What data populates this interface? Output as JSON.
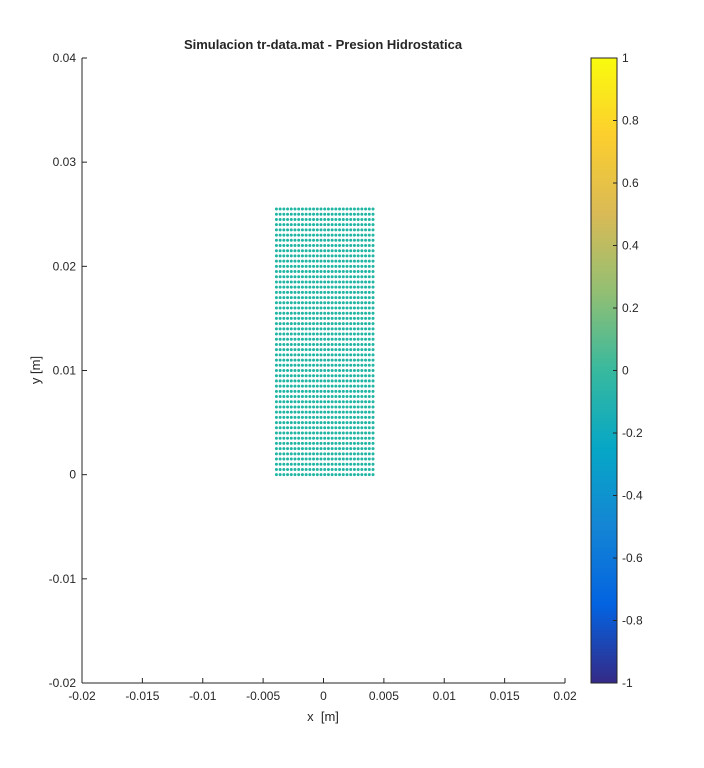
{
  "chart_data": {
    "type": "scatter",
    "title": "Simulacion tr-data.mat - Presion Hidrostatica",
    "xlabel": "x  [m]",
    "ylabel": "y [m]",
    "xlim": [
      -0.02,
      0.02
    ],
    "ylim": [
      -0.02,
      0.04
    ],
    "xticks": [
      -0.02,
      -0.015,
      -0.01,
      -0.005,
      0,
      0.005,
      0.01,
      0.015,
      0.02
    ],
    "xtick_labels": [
      "-0.02",
      "-0.015",
      "-0.01",
      "-0.005",
      "0",
      "0.005",
      "0.01",
      "0.015",
      "0.02"
    ],
    "yticks": [
      -0.02,
      -0.01,
      0,
      0.01,
      0.02,
      0.03,
      0.04
    ],
    "ytick_labels": [
      "-0.02",
      "-0.01",
      "0",
      "0.01",
      "0.02",
      "0.03",
      "0.04"
    ],
    "grid": false,
    "particles": {
      "x_min": -0.0039,
      "x_max": 0.0041,
      "y_min": 0,
      "y_max": 0.0255,
      "nx": 27,
      "ny": 52,
      "value": 0,
      "color": "#21b5a3"
    },
    "colorbar": {
      "colormap": "parula",
      "limits": [
        -1,
        1
      ],
      "ticks": [
        -1,
        -0.8,
        -0.6,
        -0.4,
        -0.2,
        0,
        0.2,
        0.4,
        0.6,
        0.8,
        1
      ],
      "tick_labels": [
        "-1",
        "-0.8",
        "-0.6",
        "-0.4",
        "-0.2",
        "0",
        "0.2",
        "0.4",
        "0.6",
        "0.8",
        "1"
      ],
      "colors": [
        "#352a87",
        "#0363e1",
        "#1485d4",
        "#06a7c6",
        "#38b99e",
        "#92bf73",
        "#d9ba56",
        "#fcce2e",
        "#f9fb0e"
      ]
    }
  }
}
